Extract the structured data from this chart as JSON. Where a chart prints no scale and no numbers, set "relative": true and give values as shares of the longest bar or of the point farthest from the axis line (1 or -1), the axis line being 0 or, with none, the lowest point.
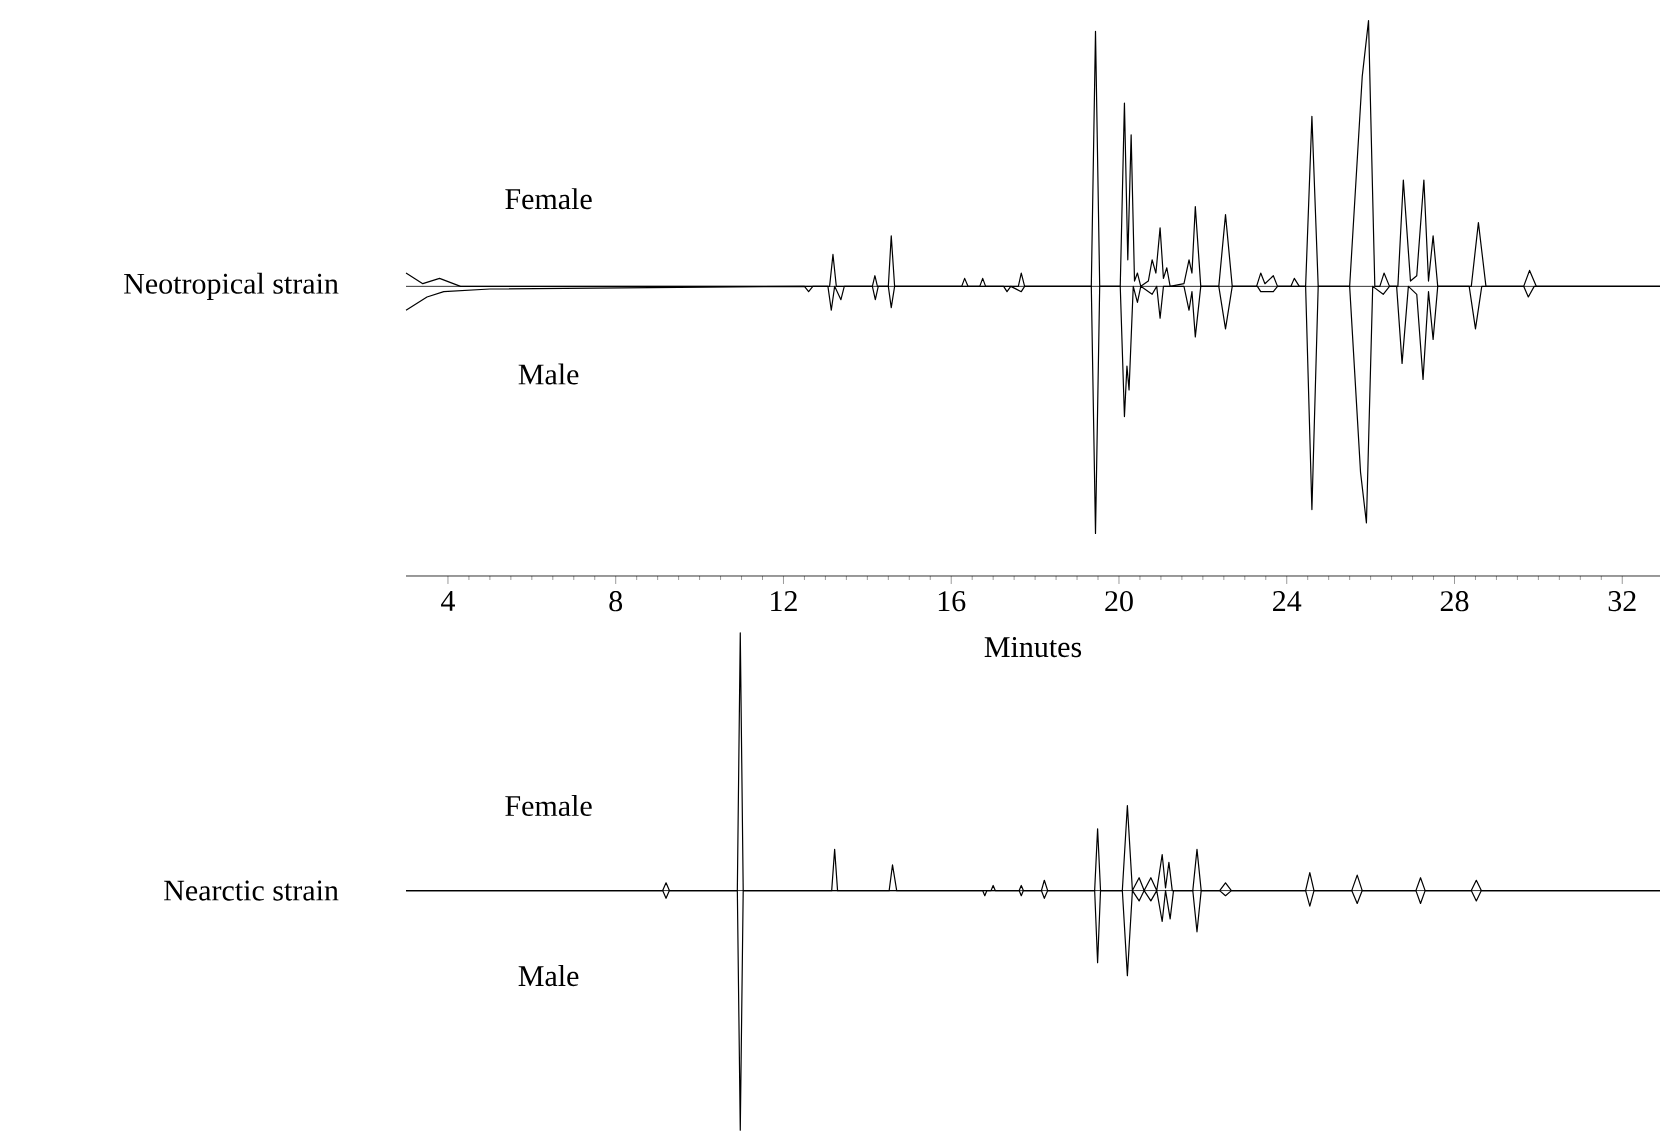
{
  "chart_data": [
    {
      "type": "line",
      "relative": true,
      "ylabel": "Neotropical strain",
      "xlabel": "Minutes",
      "xlim": [
        3,
        32.9
      ],
      "xticks": [
        4,
        8,
        12,
        16,
        20,
        24,
        28,
        32
      ],
      "tick_labels": "x",
      "series": [
        {
          "name": "Female",
          "color": "#000000",
          "x": [
            3.0,
            3.4,
            3.8,
            4.3,
            13.1,
            13.18,
            13.26,
            14.12,
            14.18,
            14.24,
            14.5,
            14.57,
            14.65,
            16.25,
            16.32,
            16.4,
            16.68,
            16.75,
            16.82,
            17.6,
            17.67,
            17.75,
            19.34,
            19.44,
            19.54,
            20.03,
            20.13,
            20.21,
            20.29,
            20.37,
            20.44,
            20.52,
            20.7,
            20.79,
            20.88,
            20.98,
            21.06,
            21.14,
            21.22,
            21.55,
            21.67,
            21.74,
            21.82,
            21.95,
            22.38,
            22.54,
            22.7,
            23.28,
            23.38,
            23.48,
            23.68,
            23.78,
            24.1,
            24.18,
            24.3,
            24.45,
            24.6,
            24.75,
            25.5,
            25.8,
            25.95,
            26.1,
            26.22,
            26.32,
            26.45,
            26.65,
            26.78,
            26.95,
            27.1,
            27.27,
            27.38,
            27.49,
            27.6,
            28.4,
            28.57,
            28.75,
            29.65,
            29.79,
            29.95,
            32.9
          ],
          "values": [
            0.05,
            0.01,
            0.03,
            0,
            0,
            0.12,
            0,
            0,
            0.04,
            0,
            0,
            0.19,
            0,
            0,
            0.03,
            0,
            0,
            0.03,
            0,
            0,
            0.05,
            0,
            0,
            0.96,
            0,
            0,
            0.69,
            0.1,
            0.57,
            0.02,
            0.05,
            0,
            0.02,
            0.1,
            0.05,
            0.22,
            0.03,
            0.07,
            0,
            0.01,
            0.1,
            0.05,
            0.3,
            0,
            0,
            0.27,
            0,
            0,
            0.05,
            0.01,
            0.04,
            0,
            0,
            0.03,
            0,
            0,
            0.64,
            0,
            0,
            0.79,
            1,
            0,
            0,
            0.05,
            0,
            0,
            0.4,
            0.02,
            0.04,
            0.4,
            0.02,
            0.19,
            0,
            0,
            0.24,
            0,
            0,
            0.06,
            0,
            0
          ]
        },
        {
          "name": "Male",
          "color": "#000000",
          "x": [
            3.0,
            3.5,
            3.9,
            5.0,
            12.5,
            12.6,
            12.7,
            13.06,
            13.14,
            13.22,
            13.37,
            13.45,
            14.12,
            14.19,
            14.26,
            14.5,
            14.57,
            14.65,
            17.25,
            17.33,
            17.42,
            17.67,
            17.75,
            19.34,
            19.44,
            19.54,
            20.03,
            20.13,
            20.19,
            20.24,
            20.34,
            20.44,
            20.52,
            20.79,
            20.9,
            20.98,
            21.06,
            21.55,
            21.67,
            21.74,
            21.82,
            21.95,
            22.38,
            22.54,
            22.7,
            23.3,
            23.38,
            23.68,
            23.78,
            24.45,
            24.6,
            24.75,
            25.5,
            25.76,
            25.9,
            26.05,
            26.3,
            26.45,
            26.62,
            26.75,
            26.9,
            27.1,
            27.25,
            27.38,
            27.49,
            27.6,
            28.35,
            28.5,
            28.65,
            29.65,
            29.76,
            29.9,
            32.9
          ],
          "values": [
            -0.09,
            -0.04,
            -0.02,
            -0.01,
            0,
            -0.02,
            0,
            0,
            -0.09,
            0,
            -0.05,
            0,
            0,
            -0.05,
            0,
            0,
            -0.08,
            0,
            0,
            -0.02,
            0,
            -0.02,
            0,
            0,
            -0.93,
            0,
            0,
            -0.49,
            -0.3,
            -0.39,
            0,
            -0.06,
            0,
            -0.03,
            0,
            -0.12,
            0,
            0,
            -0.09,
            -0.02,
            -0.19,
            0,
            0,
            -0.16,
            0,
            0,
            -0.02,
            -0.02,
            0,
            0,
            -0.84,
            0,
            0,
            -0.7,
            -0.89,
            0,
            -0.03,
            0,
            0,
            -0.29,
            0,
            -0.03,
            -0.35,
            -0.02,
            -0.2,
            0,
            0,
            -0.16,
            0,
            0,
            -0.04,
            0,
            0
          ]
        }
      ]
    },
    {
      "type": "line",
      "relative": true,
      "ylabel": "Nearctic strain",
      "xlim": [
        3,
        32.9
      ],
      "tick_labels": false,
      "series": [
        {
          "name": "Female",
          "color": "#000000",
          "x": [
            3.0,
            9.12,
            9.2,
            9.28,
            10.9,
            10.97,
            11.04,
            13.15,
            13.22,
            13.29,
            14.52,
            14.6,
            14.7,
            16.95,
            17.0,
            17.05,
            17.62,
            17.67,
            17.72,
            18.15,
            18.22,
            18.3,
            19.42,
            19.49,
            19.56,
            20.08,
            20.2,
            20.32,
            20.48,
            20.6,
            20.76,
            20.9,
            21.03,
            21.11,
            21.19,
            21.27,
            21.76,
            21.86,
            21.96,
            22.4,
            22.54,
            22.68,
            24.45,
            24.55,
            24.65,
            25.55,
            25.68,
            25.8,
            27.08,
            27.19,
            27.3,
            28.4,
            28.52,
            28.64,
            32.9
          ],
          "values": [
            0,
            0,
            0.03,
            0,
            0,
            1,
            0,
            0,
            0.16,
            0,
            0,
            0.1,
            0,
            0,
            0.02,
            0,
            0,
            0.02,
            0,
            0,
            0.04,
            0,
            0,
            0.24,
            0,
            0,
            0.33,
            0,
            0.05,
            0,
            0.05,
            0,
            0.14,
            0.01,
            0.11,
            0,
            0,
            0.16,
            0,
            0,
            0.03,
            0,
            0,
            0.07,
            0,
            0,
            0.06,
            0,
            0,
            0.05,
            0,
            0,
            0.04,
            0,
            0
          ]
        },
        {
          "name": "Male",
          "color": "#000000",
          "x": [
            3.0,
            9.12,
            9.2,
            9.28,
            10.9,
            10.97,
            11.04,
            16.75,
            16.8,
            16.85,
            17.62,
            17.67,
            17.72,
            18.15,
            18.22,
            18.3,
            19.42,
            19.49,
            19.56,
            20.08,
            20.2,
            20.32,
            20.48,
            20.6,
            20.76,
            20.9,
            21.03,
            21.11,
            21.22,
            21.3,
            21.76,
            21.86,
            21.96,
            22.4,
            22.54,
            22.68,
            24.45,
            24.55,
            24.65,
            25.55,
            25.68,
            25.8,
            27.08,
            27.19,
            27.3,
            28.4,
            28.52,
            28.64,
            32.9
          ],
          "values": [
            0,
            0,
            -0.03,
            0,
            0,
            -0.93,
            0,
            0,
            -0.02,
            0,
            0,
            -0.02,
            0,
            0,
            -0.03,
            0,
            0,
            -0.28,
            0,
            0,
            -0.33,
            0,
            -0.04,
            0,
            -0.04,
            0,
            -0.12,
            0,
            -0.11,
            0,
            0,
            -0.16,
            0,
            0,
            -0.02,
            0,
            0,
            -0.06,
            0,
            0,
            -0.05,
            0,
            0,
            -0.05,
            0,
            0,
            -0.04,
            0,
            0
          ]
        }
      ]
    }
  ]
}
